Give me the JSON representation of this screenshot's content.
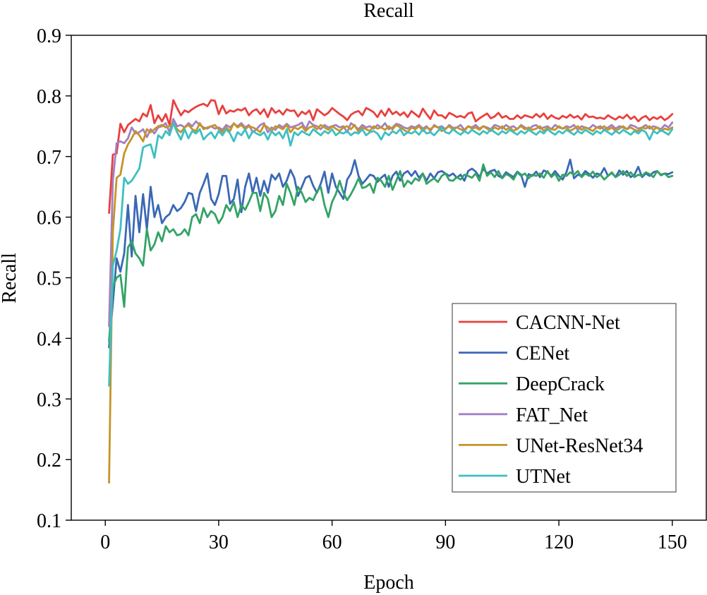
{
  "chart_data": {
    "type": "line",
    "title": "Recall",
    "xlabel": "Epoch",
    "ylabel": "Recall",
    "xlim": [
      -9,
      159
    ],
    "ylim": [
      0.1,
      0.9
    ],
    "xticks": [
      0,
      30,
      60,
      90,
      120,
      150
    ],
    "xtick_labels": [
      "0",
      "30",
      "60",
      "90",
      "120",
      "150"
    ],
    "yticks": [
      0.1,
      0.2,
      0.3,
      0.4,
      0.5,
      0.6,
      0.7,
      0.8,
      0.9
    ],
    "ytick_labels": [
      "0.1",
      "0.2",
      "0.3",
      "0.4",
      "0.5",
      "0.6",
      "0.7",
      "0.8",
      "0.9"
    ],
    "grid": false,
    "legend_position": "lower-right",
    "x_start": 1,
    "x_step": 1,
    "series": [
      {
        "name": "CACNN-Net",
        "color": "#e8403f",
        "values": [
          0.607,
          0.703,
          0.705,
          0.754,
          0.74,
          0.752,
          0.757,
          0.762,
          0.758,
          0.771,
          0.766,
          0.785,
          0.755,
          0.768,
          0.758,
          0.77,
          0.752,
          0.793,
          0.78,
          0.768,
          0.776,
          0.773,
          0.778,
          0.782,
          0.785,
          0.787,
          0.783,
          0.793,
          0.792,
          0.77,
          0.784,
          0.771,
          0.776,
          0.774,
          0.778,
          0.776,
          0.78,
          0.768,
          0.775,
          0.778,
          0.77,
          0.778,
          0.765,
          0.78,
          0.772,
          0.776,
          0.769,
          0.778,
          0.775,
          0.776,
          0.766,
          0.774,
          0.77,
          0.776,
          0.76,
          0.778,
          0.773,
          0.768,
          0.772,
          0.78,
          0.775,
          0.77,
          0.766,
          0.76,
          0.769,
          0.773,
          0.775,
          0.768,
          0.78,
          0.777,
          0.773,
          0.765,
          0.776,
          0.767,
          0.779,
          0.77,
          0.774,
          0.768,
          0.773,
          0.765,
          0.775,
          0.77,
          0.765,
          0.779,
          0.77,
          0.762,
          0.776,
          0.768,
          0.768,
          0.763,
          0.772,
          0.769,
          0.765,
          0.767,
          0.764,
          0.771,
          0.773,
          0.758,
          0.763,
          0.767,
          0.771,
          0.763,
          0.766,
          0.772,
          0.764,
          0.767,
          0.762,
          0.762,
          0.768,
          0.763,
          0.768,
          0.766,
          0.764,
          0.77,
          0.765,
          0.771,
          0.762,
          0.768,
          0.764,
          0.762,
          0.767,
          0.764,
          0.769,
          0.764,
          0.767,
          0.761,
          0.77,
          0.765,
          0.766,
          0.763,
          0.764,
          0.762,
          0.768,
          0.764,
          0.761,
          0.766,
          0.763,
          0.769,
          0.762,
          0.766,
          0.758,
          0.764,
          0.767,
          0.76,
          0.765,
          0.762,
          0.766,
          0.76,
          0.764,
          0.77
        ]
      },
      {
        "name": "CENet",
        "color": "#3a68b5",
        "values": [
          0.385,
          0.458,
          0.532,
          0.51,
          0.54,
          0.62,
          0.535,
          0.635,
          0.575,
          0.638,
          0.58,
          0.65,
          0.6,
          0.62,
          0.59,
          0.6,
          0.605,
          0.62,
          0.61,
          0.615,
          0.625,
          0.64,
          0.638,
          0.61,
          0.64,
          0.655,
          0.672,
          0.63,
          0.62,
          0.638,
          0.668,
          0.668,
          0.622,
          0.63,
          0.662,
          0.608,
          0.65,
          0.672,
          0.64,
          0.665,
          0.635,
          0.66,
          0.64,
          0.67,
          0.662,
          0.672,
          0.65,
          0.66,
          0.678,
          0.665,
          0.635,
          0.65,
          0.665,
          0.668,
          0.652,
          0.64,
          0.655,
          0.675,
          0.64,
          0.672,
          0.65,
          0.64,
          0.63,
          0.662,
          0.672,
          0.694,
          0.668,
          0.655,
          0.662,
          0.67,
          0.668,
          0.658,
          0.665,
          0.67,
          0.65,
          0.668,
          0.675,
          0.66,
          0.672,
          0.676,
          0.668,
          0.676,
          0.665,
          0.672,
          0.66,
          0.672,
          0.664,
          0.674,
          0.676,
          0.672,
          0.668,
          0.672,
          0.665,
          0.67,
          0.66,
          0.676,
          0.68,
          0.675,
          0.666,
          0.68,
          0.672,
          0.676,
          0.678,
          0.668,
          0.665,
          0.674,
          0.67,
          0.666,
          0.675,
          0.67,
          0.65,
          0.671,
          0.668,
          0.675,
          0.666,
          0.677,
          0.674,
          0.668,
          0.676,
          0.668,
          0.662,
          0.674,
          0.695,
          0.664,
          0.67,
          0.668,
          0.676,
          0.671,
          0.665,
          0.672,
          0.67,
          0.681,
          0.668,
          0.673,
          0.666,
          0.677,
          0.67,
          0.676,
          0.666,
          0.67,
          0.683,
          0.666,
          0.672,
          0.668,
          0.674,
          0.676,
          0.669,
          0.672,
          0.671,
          0.674
        ]
      },
      {
        "name": "DeepCrack",
        "color": "#33a365",
        "values": [
          0.395,
          0.485,
          0.5,
          0.505,
          0.452,
          0.55,
          0.56,
          0.54,
          0.532,
          0.52,
          0.58,
          0.545,
          0.555,
          0.575,
          0.56,
          0.585,
          0.575,
          0.58,
          0.57,
          0.572,
          0.58,
          0.57,
          0.6,
          0.605,
          0.59,
          0.615,
          0.6,
          0.61,
          0.605,
          0.59,
          0.6,
          0.62,
          0.61,
          0.625,
          0.6,
          0.62,
          0.612,
          0.625,
          0.64,
          0.64,
          0.61,
          0.64,
          0.63,
          0.6,
          0.61,
          0.635,
          0.62,
          0.655,
          0.64,
          0.62,
          0.65,
          0.64,
          0.625,
          0.632,
          0.628,
          0.642,
          0.65,
          0.62,
          0.6,
          0.625,
          0.638,
          0.66,
          0.64,
          0.628,
          0.638,
          0.65,
          0.664,
          0.648,
          0.65,
          0.655,
          0.64,
          0.665,
          0.66,
          0.65,
          0.668,
          0.645,
          0.66,
          0.676,
          0.65,
          0.66,
          0.655,
          0.664,
          0.66,
          0.672,
          0.655,
          0.66,
          0.664,
          0.658,
          0.668,
          0.672,
          0.661,
          0.66,
          0.666,
          0.662,
          0.67,
          0.668,
          0.665,
          0.672,
          0.66,
          0.687,
          0.668,
          0.674,
          0.666,
          0.676,
          0.664,
          0.671,
          0.668,
          0.662,
          0.674,
          0.668,
          0.672,
          0.664,
          0.67,
          0.668,
          0.672,
          0.665,
          0.676,
          0.666,
          0.672,
          0.66,
          0.67,
          0.668,
          0.674,
          0.67,
          0.676,
          0.666,
          0.672,
          0.668,
          0.675,
          0.666,
          0.67,
          0.662,
          0.668,
          0.674,
          0.666,
          0.67,
          0.676,
          0.668,
          0.674,
          0.666,
          0.67,
          0.668,
          0.674,
          0.671,
          0.666,
          0.676,
          0.67,
          0.672,
          0.666,
          0.668
        ]
      },
      {
        "name": "FAT_Net",
        "color": "#a37fc4",
        "values": [
          0.42,
          0.66,
          0.722,
          0.725,
          0.722,
          0.73,
          0.748,
          0.738,
          0.74,
          0.745,
          0.732,
          0.745,
          0.738,
          0.748,
          0.75,
          0.755,
          0.74,
          0.762,
          0.75,
          0.752,
          0.748,
          0.755,
          0.75,
          0.758,
          0.752,
          0.748,
          0.746,
          0.75,
          0.746,
          0.748,
          0.744,
          0.752,
          0.748,
          0.754,
          0.75,
          0.755,
          0.748,
          0.752,
          0.74,
          0.745,
          0.752,
          0.755,
          0.74,
          0.748,
          0.744,
          0.752,
          0.748,
          0.754,
          0.748,
          0.75,
          0.752,
          0.756,
          0.745,
          0.758,
          0.752,
          0.75,
          0.745,
          0.752,
          0.748,
          0.75,
          0.752,
          0.748,
          0.75,
          0.74,
          0.755,
          0.75,
          0.745,
          0.752,
          0.748,
          0.75,
          0.746,
          0.752,
          0.748,
          0.755,
          0.745,
          0.748,
          0.754,
          0.752,
          0.748,
          0.746,
          0.75,
          0.748,
          0.752,
          0.746,
          0.75,
          0.742,
          0.752,
          0.748,
          0.75,
          0.745,
          0.752,
          0.747,
          0.748,
          0.752,
          0.744,
          0.75,
          0.748,
          0.752,
          0.746,
          0.75,
          0.748,
          0.745,
          0.752,
          0.75,
          0.746,
          0.752,
          0.748,
          0.75,
          0.745,
          0.752,
          0.748,
          0.744,
          0.75,
          0.752,
          0.746,
          0.748,
          0.75,
          0.745,
          0.752,
          0.748,
          0.746,
          0.75,
          0.748,
          0.752,
          0.744,
          0.75,
          0.748,
          0.746,
          0.752,
          0.748,
          0.75,
          0.744,
          0.748,
          0.752,
          0.746,
          0.75,
          0.748,
          0.745,
          0.752,
          0.75,
          0.746,
          0.748,
          0.752,
          0.746,
          0.75,
          0.748,
          0.745,
          0.752,
          0.748,
          0.756
        ]
      },
      {
        "name": "UNet-ResNet34",
        "color": "#c49528",
        "values": [
          0.162,
          0.575,
          0.665,
          0.67,
          0.705,
          0.72,
          0.73,
          0.742,
          0.735,
          0.725,
          0.745,
          0.74,
          0.745,
          0.75,
          0.752,
          0.748,
          0.75,
          0.755,
          0.745,
          0.74,
          0.748,
          0.752,
          0.745,
          0.742,
          0.755,
          0.745,
          0.748,
          0.75,
          0.752,
          0.745,
          0.74,
          0.748,
          0.742,
          0.755,
          0.748,
          0.752,
          0.745,
          0.75,
          0.748,
          0.745,
          0.74,
          0.752,
          0.748,
          0.742,
          0.75,
          0.748,
          0.745,
          0.752,
          0.74,
          0.748,
          0.745,
          0.75,
          0.742,
          0.748,
          0.75,
          0.745,
          0.752,
          0.748,
          0.744,
          0.75,
          0.746,
          0.742,
          0.748,
          0.75,
          0.745,
          0.752,
          0.74,
          0.748,
          0.745,
          0.742,
          0.75,
          0.746,
          0.748,
          0.744,
          0.75,
          0.745,
          0.752,
          0.748,
          0.744,
          0.74,
          0.748,
          0.745,
          0.75,
          0.742,
          0.748,
          0.745,
          0.75,
          0.748,
          0.742,
          0.746,
          0.75,
          0.744,
          0.748,
          0.745,
          0.742,
          0.75,
          0.746,
          0.748,
          0.744,
          0.75,
          0.746,
          0.742,
          0.748,
          0.745,
          0.75,
          0.744,
          0.748,
          0.742,
          0.746,
          0.75,
          0.745,
          0.748,
          0.744,
          0.746,
          0.75,
          0.742,
          0.748,
          0.745,
          0.744,
          0.75,
          0.746,
          0.748,
          0.742,
          0.746,
          0.75,
          0.744,
          0.748,
          0.745,
          0.742,
          0.748,
          0.746,
          0.75,
          0.744,
          0.748,
          0.742,
          0.746,
          0.75,
          0.745,
          0.748,
          0.744,
          0.742,
          0.748,
          0.746,
          0.75,
          0.744,
          0.748,
          0.742,
          0.746,
          0.744,
          0.748
        ]
      },
      {
        "name": "UTNet",
        "color": "#3ebfc2",
        "values": [
          0.322,
          0.52,
          0.545,
          0.58,
          0.665,
          0.655,
          0.66,
          0.67,
          0.68,
          0.715,
          0.718,
          0.72,
          0.698,
          0.735,
          0.73,
          0.742,
          0.735,
          0.755,
          0.74,
          0.728,
          0.745,
          0.73,
          0.742,
          0.738,
          0.745,
          0.728,
          0.735,
          0.74,
          0.73,
          0.742,
          0.735,
          0.745,
          0.738,
          0.725,
          0.74,
          0.735,
          0.745,
          0.73,
          0.742,
          0.738,
          0.735,
          0.74,
          0.728,
          0.742,
          0.735,
          0.74,
          0.73,
          0.745,
          0.718,
          0.74,
          0.735,
          0.742,
          0.738,
          0.735,
          0.745,
          0.74,
          0.735,
          0.742,
          0.738,
          0.745,
          0.735,
          0.74,
          0.738,
          0.742,
          0.735,
          0.74,
          0.738,
          0.745,
          0.735,
          0.74,
          0.742,
          0.738,
          0.728,
          0.74,
          0.735,
          0.742,
          0.738,
          0.745,
          0.735,
          0.74,
          0.738,
          0.742,
          0.736,
          0.745,
          0.738,
          0.74,
          0.735,
          0.742,
          0.748,
          0.74,
          0.738,
          0.745,
          0.74,
          0.736,
          0.742,
          0.738,
          0.744,
          0.74,
          0.736,
          0.742,
          0.738,
          0.745,
          0.74,
          0.736,
          0.742,
          0.738,
          0.744,
          0.74,
          0.736,
          0.742,
          0.738,
          0.744,
          0.74,
          0.736,
          0.742,
          0.738,
          0.745,
          0.74,
          0.736,
          0.742,
          0.738,
          0.744,
          0.74,
          0.736,
          0.742,
          0.738,
          0.744,
          0.74,
          0.736,
          0.742,
          0.738,
          0.744,
          0.74,
          0.736,
          0.742,
          0.738,
          0.744,
          0.74,
          0.736,
          0.742,
          0.738,
          0.744,
          0.74,
          0.728,
          0.742,
          0.738,
          0.744,
          0.74,
          0.736,
          0.745
        ]
      }
    ]
  }
}
